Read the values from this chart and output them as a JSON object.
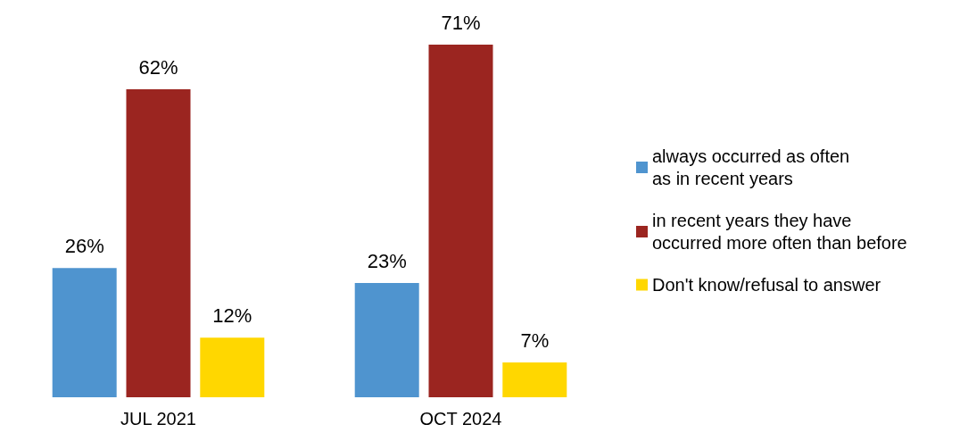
{
  "chart_data": {
    "type": "bar",
    "categories": [
      "JUL 2021",
      "OCT 2024"
    ],
    "series": [
      {
        "name": "always occurred as often\nas in recent years",
        "color": "#4f94cf",
        "values": [
          26,
          23
        ],
        "value_labels": [
          "26%",
          "23%"
        ]
      },
      {
        "name": "in recent years they have\noccurred more often than before",
        "color": "#9b2520",
        "values": [
          62,
          71
        ],
        "value_labels": [
          "62%",
          "71%"
        ]
      },
      {
        "name": "Don't know/refusal to answer",
        "color": "#ffd700",
        "values": [
          12,
          7
        ],
        "value_labels": [
          "12%",
          "7%"
        ]
      }
    ],
    "legend": "right"
  }
}
